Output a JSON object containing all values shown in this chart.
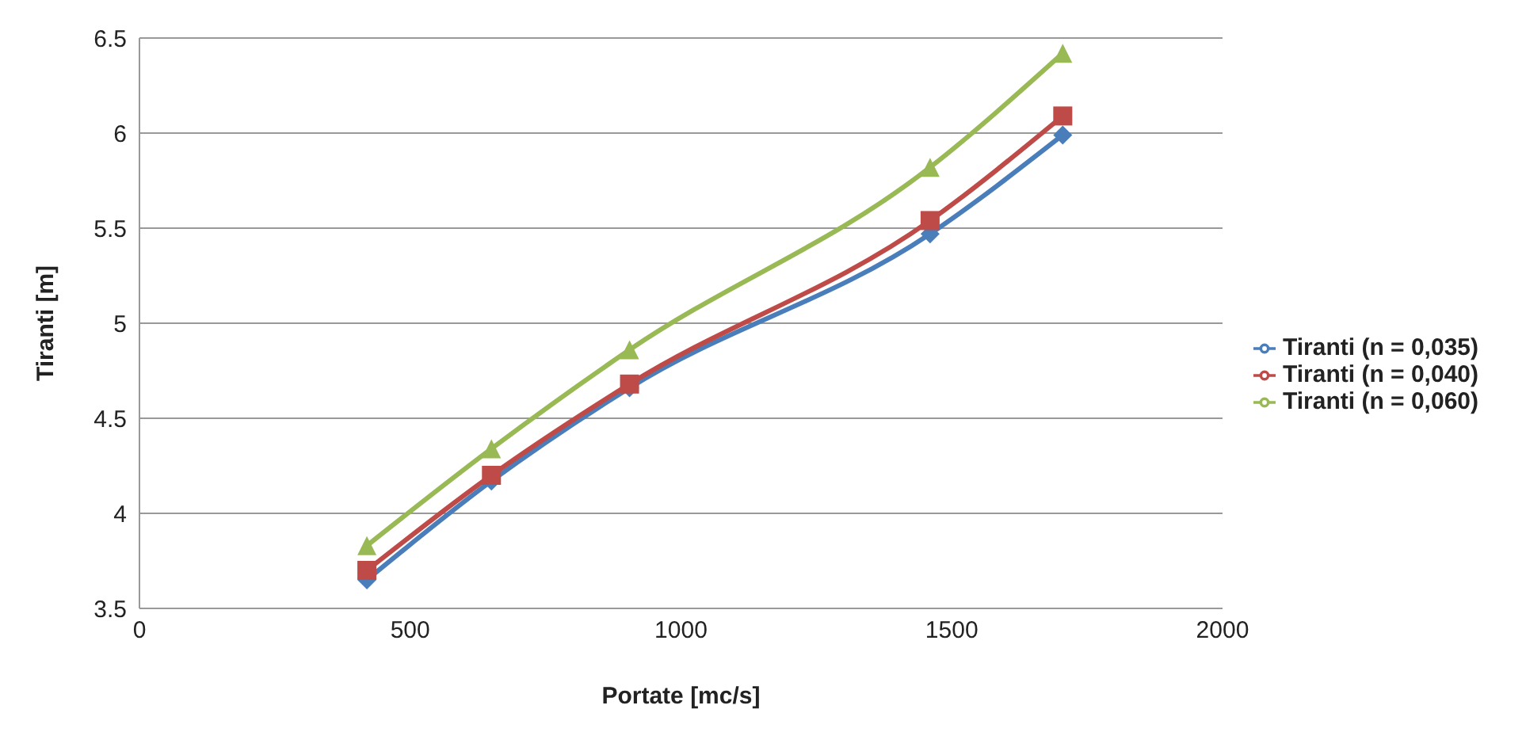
{
  "chart_data": {
    "type": "line",
    "xlabel": "Portate [mc/s]",
    "ylabel": "Tiranti [m]",
    "x": [
      420,
      650,
      905,
      1460,
      1705
    ],
    "series": [
      {
        "name": "Tiranti (n = 0,035)",
        "color": "#4a7ebb",
        "values": [
          3.65,
          4.17,
          4.66,
          5.47,
          5.99
        ],
        "marker": "diamond"
      },
      {
        "name": "Tiranti (n = 0,040)",
        "color": "#be4b48",
        "values": [
          3.7,
          4.2,
          4.68,
          5.54,
          6.09
        ],
        "marker": "square"
      },
      {
        "name": "Tiranti (n = 0,060)",
        "color": "#98b954",
        "values": [
          3.83,
          4.34,
          4.86,
          5.82,
          6.42
        ],
        "marker": "triangle"
      }
    ],
    "xlim": [
      0,
      2000
    ],
    "xticks": [
      0,
      500,
      1000,
      1500,
      2000
    ],
    "ylim": [
      3.5,
      6.5
    ],
    "yticks": [
      3.5,
      4,
      4.5,
      5,
      5.5,
      6,
      6.5
    ],
    "grid": "y",
    "legend": "right"
  }
}
